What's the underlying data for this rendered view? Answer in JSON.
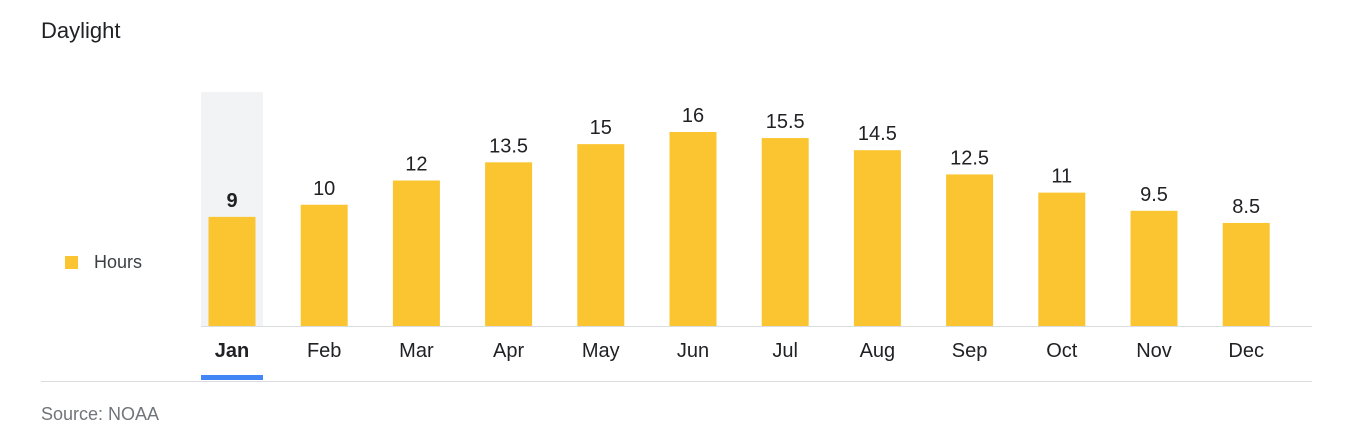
{
  "title": "Daylight",
  "source": "Source: NOAA",
  "colors": {
    "bar": "#fbc531",
    "highlight_bg": "#f1f3f4",
    "selected_underline": "#4285f4",
    "axis_line": "#dadce0",
    "text": "#202124"
  },
  "chart_data": {
    "type": "bar",
    "categories": [
      "Jan",
      "Feb",
      "Mar",
      "Apr",
      "May",
      "Jun",
      "Jul",
      "Aug",
      "Sep",
      "Oct",
      "Nov",
      "Dec"
    ],
    "series": [
      {
        "name": "Hours",
        "values": [
          9,
          10,
          12,
          13.5,
          15,
          16,
          15.5,
          14.5,
          12.5,
          11,
          9.5,
          8.5
        ]
      }
    ],
    "value_labels": [
      "9",
      "10",
      "12",
      "13.5",
      "15",
      "16",
      "15.5",
      "14.5",
      "12.5",
      "11",
      "9.5",
      "8.5"
    ],
    "selected_index": 0,
    "legend": "left",
    "grid": false,
    "ylim": [
      0,
      16
    ]
  }
}
